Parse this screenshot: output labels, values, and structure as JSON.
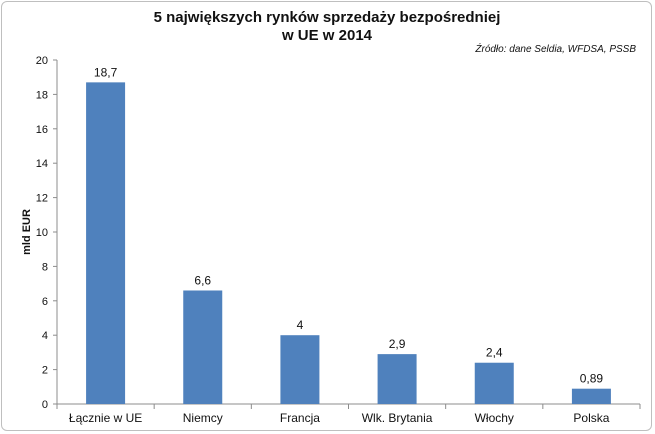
{
  "chart_data": {
    "type": "bar",
    "title_lines": [
      "5 największych rynków sprzedaży bezpośredniej",
      "w UE w 2014"
    ],
    "source": "Źródło: dane Seldia, WFDSA, PSSB",
    "ylabel": "mld EUR",
    "xlabel": "",
    "ylim": [
      0,
      20
    ],
    "yticks": [
      0,
      2,
      4,
      6,
      8,
      10,
      12,
      14,
      16,
      18,
      20
    ],
    "categories": [
      "Łącznie w UE",
      "Niemcy",
      "Francja",
      "Wlk. Brytania",
      "Włochy",
      "Polska"
    ],
    "values": [
      18.7,
      6.6,
      4,
      2.9,
      2.4,
      0.89
    ],
    "data_labels": [
      "18,7",
      "6,6",
      "4",
      "2,9",
      "2,4",
      "0,89"
    ],
    "bar_color": "#4f81bd",
    "grid": false,
    "legend": "none"
  }
}
